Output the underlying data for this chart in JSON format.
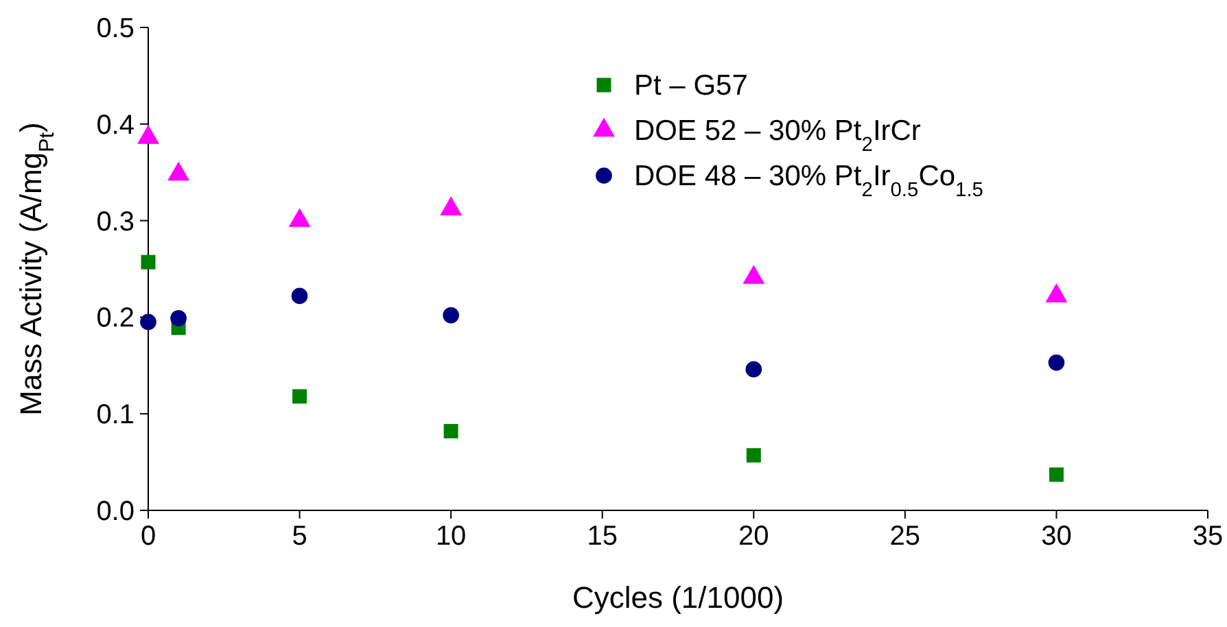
{
  "chart_data": {
    "type": "scatter",
    "xlabel": "Cycles (1/1000)",
    "ylabel": "Mass Activity (A/mg$_{Pt}$)",
    "xlim": [
      0,
      35
    ],
    "xticks": [
      0,
      5,
      10,
      15,
      20,
      25,
      30,
      35
    ],
    "ylim": [
      0,
      0.5
    ],
    "yticks": [
      {
        "value": 0,
        "label": "0.0"
      },
      0.1,
      0.2,
      0.3,
      0.4,
      0.5
    ],
    "legend": "top right",
    "x": [
      0,
      1,
      5,
      10,
      20,
      30
    ],
    "series": [
      {
        "name": "Pt – G57",
        "color": "#008000",
        "marker": "square",
        "values": [
          0.257,
          0.189,
          0.118,
          0.082,
          0.057,
          0.037
        ]
      },
      {
        "name": "DOE 52 – 30% Pt$_{2}$IrCr",
        "color": "#ff00ff",
        "marker": "triangle",
        "values": [
          0.386,
          0.348,
          0.3,
          0.312,
          0.241,
          0.222
        ]
      },
      {
        "name": "DOE 48 – 30% Pt$_{2}$Ir$_{0.5}$Co$_{1.5}$",
        "color": "#000080",
        "marker": "circle",
        "values": [
          0.195,
          0.199,
          0.222,
          0.202,
          0.146,
          0.153
        ]
      }
    ]
  }
}
